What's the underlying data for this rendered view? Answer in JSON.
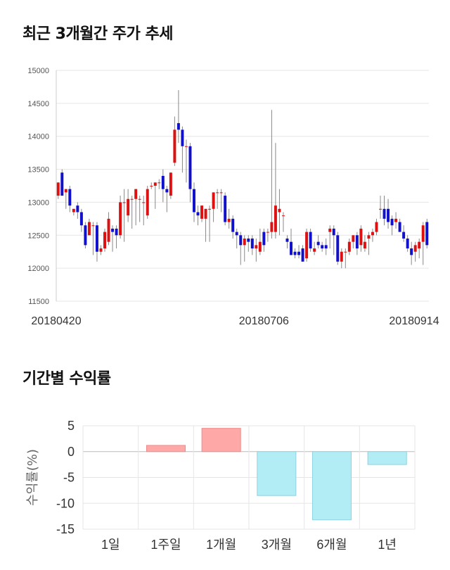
{
  "titles": {
    "trend": "최근 3개월간 주가 추세",
    "returns": "기간별 수익률"
  },
  "chart_data": [
    {
      "type": "candlestick",
      "ylim": [
        11500,
        15000
      ],
      "yticks": [
        11500,
        12000,
        12500,
        13000,
        13500,
        14000,
        14500,
        15000
      ],
      "xtick_labels": [
        "20180420",
        "20180706",
        "20180914"
      ],
      "xtick_index": [
        0,
        53,
        105
      ],
      "grid": true,
      "colors": {
        "up": "#dd1111",
        "down": "#1111cc",
        "wick": "#888888"
      },
      "ohlc": [
        [
          13100,
          13300,
          13050,
          13300
        ],
        [
          13450,
          13500,
          13100,
          13100
        ],
        [
          13150,
          13200,
          12900,
          13200
        ],
        [
          13200,
          13250,
          12850,
          12950
        ],
        [
          12850,
          12900,
          12800,
          12900
        ],
        [
          12950,
          13000,
          12750,
          12850
        ],
        [
          12850,
          12900,
          12550,
          12650
        ],
        [
          12650,
          12700,
          12300,
          12350
        ],
        [
          12500,
          12750,
          12500,
          12700
        ],
        [
          12650,
          12700,
          12200,
          12650
        ],
        [
          12650,
          12700,
          12100,
          12250
        ],
        [
          12250,
          12350,
          12200,
          12300
        ],
        [
          12300,
          12600,
          12250,
          12550
        ],
        [
          12400,
          12850,
          12350,
          12750
        ],
        [
          12600,
          12650,
          12250,
          12550
        ],
        [
          12600,
          12650,
          12300,
          12500
        ],
        [
          12500,
          13100,
          12450,
          13000
        ],
        [
          13000,
          13200,
          12400,
          13000
        ],
        [
          12800,
          13200,
          12700,
          13050
        ],
        [
          13050,
          13100,
          12600,
          13050
        ],
        [
          13050,
          13200,
          12650,
          13200
        ],
        [
          13050,
          13100,
          12700,
          13050
        ],
        [
          13000,
          13100,
          12650,
          13000
        ],
        [
          12800,
          13250,
          12750,
          13200
        ],
        [
          13250,
          13300,
          13200,
          13250
        ],
        [
          13250,
          13300,
          12900,
          13300
        ],
        [
          13300,
          13350,
          13200,
          13300
        ],
        [
          13400,
          13500,
          13000,
          13200
        ],
        [
          13200,
          13250,
          12850,
          13150
        ],
        [
          13100,
          13450,
          13050,
          13450
        ],
        [
          13600,
          14300,
          13550,
          14100
        ],
        [
          14200,
          14700,
          13900,
          14100
        ],
        [
          14100,
          14150,
          13450,
          13850
        ],
        [
          13850,
          13950,
          13300,
          13850
        ],
        [
          13850,
          13900,
          13000,
          13200
        ],
        [
          13200,
          13300,
          12700,
          12850
        ],
        [
          12850,
          12950,
          12650,
          12800
        ],
        [
          12750,
          12950,
          12700,
          12950
        ],
        [
          12750,
          12900,
          12400,
          12900
        ],
        [
          12900,
          12950,
          12400,
          12900
        ],
        [
          12900,
          13150,
          12700,
          13150
        ],
        [
          13150,
          13200,
          12900,
          13150
        ],
        [
          13150,
          13200,
          12850,
          13150
        ],
        [
          13100,
          13150,
          12650,
          12700
        ],
        [
          12700,
          12900,
          12600,
          12750
        ],
        [
          12750,
          12800,
          12450,
          12550
        ],
        [
          12550,
          12600,
          12300,
          12500
        ],
        [
          12500,
          12550,
          12050,
          12350
        ],
        [
          12350,
          12500,
          12100,
          12450
        ],
        [
          12450,
          12500,
          12250,
          12400
        ],
        [
          12450,
          12500,
          12200,
          12300
        ],
        [
          12300,
          12450,
          12100,
          12350
        ],
        [
          12250,
          12600,
          12200,
          12400
        ],
        [
          12550,
          12600,
          12250,
          12350
        ],
        [
          12550,
          12600,
          12400,
          12550
        ],
        [
          12550,
          14400,
          12450,
          12700
        ],
        [
          12550,
          13900,
          12450,
          12950
        ],
        [
          12850,
          13200,
          12500,
          12900
        ],
        [
          12800,
          12850,
          12550,
          12800
        ],
        [
          12450,
          12500,
          12300,
          12400
        ],
        [
          12400,
          12600,
          12200,
          12200
        ],
        [
          12250,
          12300,
          12150,
          12200
        ],
        [
          12250,
          12350,
          12150,
          12200
        ],
        [
          12300,
          12350,
          12100,
          12100
        ],
        [
          12150,
          12600,
          12100,
          12550
        ],
        [
          12550,
          12600,
          12250,
          12300
        ],
        [
          12250,
          12400,
          12200,
          12300
        ],
        [
          12400,
          12500,
          12300,
          12350
        ],
        [
          12350,
          12400,
          12250,
          12300
        ],
        [
          12350,
          12450,
          12200,
          12300
        ],
        [
          12550,
          12650,
          12300,
          12600
        ],
        [
          12600,
          12650,
          12200,
          12500
        ],
        [
          12500,
          12550,
          12050,
          12100
        ],
        [
          12100,
          12300,
          12000,
          12250
        ],
        [
          12250,
          12300,
          12000,
          12250
        ],
        [
          12250,
          12450,
          12200,
          12400
        ],
        [
          12400,
          12500,
          12300,
          12500
        ],
        [
          12500,
          12550,
          12200,
          12300
        ],
        [
          12350,
          12650,
          12250,
          12600
        ],
        [
          12300,
          12500,
          12250,
          12400
        ],
        [
          12450,
          12550,
          12200,
          12500
        ],
        [
          12500,
          12600,
          12400,
          12550
        ],
        [
          12550,
          12750,
          12500,
          12700
        ],
        [
          12900,
          13100,
          12750,
          12900
        ],
        [
          12900,
          13100,
          12650,
          12750
        ],
        [
          12900,
          13050,
          12600,
          12700
        ],
        [
          12750,
          12800,
          12500,
          12650
        ],
        [
          12700,
          12850,
          12600,
          12750
        ],
        [
          12700,
          12750,
          12550,
          12550
        ],
        [
          12550,
          12650,
          12400,
          12450
        ],
        [
          12450,
          12500,
          12250,
          12300
        ],
        [
          12300,
          12400,
          12050,
          12200
        ],
        [
          12250,
          12400,
          12100,
          12350
        ],
        [
          12300,
          12450,
          12150,
          12400
        ],
        [
          12400,
          12700,
          12050,
          12650
        ],
        [
          12700,
          12750,
          12300,
          12350
        ]
      ]
    },
    {
      "type": "bar",
      "categories": [
        "1일",
        "1주일",
        "1개월",
        "3개월",
        "6개월",
        "1년"
      ],
      "values": [
        0,
        1.2,
        4.5,
        -8.5,
        -13.2,
        -2.5
      ],
      "ylabel": "수익률(%)",
      "ylim": [
        -15,
        5
      ],
      "yticks": [
        5,
        0,
        -5,
        -10,
        -15
      ],
      "grid": true,
      "colors": {
        "positive": "#ffa8a8",
        "negative": "#b2ecf5"
      }
    }
  ]
}
